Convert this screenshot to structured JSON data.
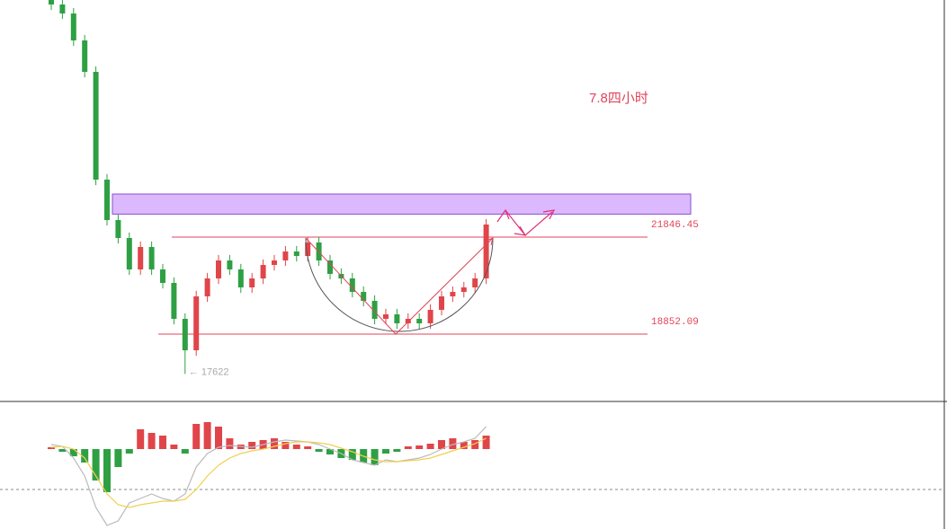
{
  "chart_data": {
    "type": "candlestick",
    "title": "7.8四小时",
    "open": [
      29166,
      29027,
      28750,
      27918,
      26948,
      23621,
      22373,
      21819,
      20849,
      21542,
      20849,
      20433,
      19324,
      18353,
      20017,
      20571,
      21126,
      20849,
      20294,
      20571,
      20987,
      21126,
      21403,
      21264,
      21680,
      21126,
      20710,
      20571,
      20155,
      19879,
      19324,
      19462,
      19185,
      19324,
      19185,
      19601,
      20017,
      20155,
      20294,
      20571
    ],
    "high": [
      29336,
      29197,
      28920,
      28088,
      27118,
      23791,
      22543,
      21989,
      21712,
      21712,
      21019,
      20603,
      19494,
      20187,
      20741,
      21296,
      21296,
      21019,
      20741,
      21157,
      21296,
      21573,
      21573,
      21850,
      21850,
      21296,
      20880,
      20741,
      20325,
      20049,
      19632,
      19632,
      19494,
      19494,
      19771,
      20187,
      20325,
      20464,
      20741,
      22405
    ],
    "low": [
      28857,
      28580,
      27748,
      26778,
      23451,
      22203,
      21649,
      20679,
      20679,
      20679,
      20263,
      19154,
      17622,
      18183,
      19847,
      20401,
      20679,
      20124,
      20124,
      20401,
      20817,
      20956,
      21094,
      21094,
      20956,
      20540,
      20401,
      19985,
      19709,
      19154,
      19154,
      19015,
      19015,
      19015,
      19015,
      19431,
      19847,
      19985,
      20124,
      20401
    ],
    "close": [
      29027,
      28750,
      27918,
      26948,
      23621,
      22373,
      21819,
      20849,
      21542,
      20849,
      20433,
      19324,
      18353,
      20017,
      20571,
      21126,
      20849,
      20294,
      20571,
      20987,
      21126,
      21403,
      21264,
      21680,
      21126,
      20710,
      20571,
      20155,
      19879,
      19324,
      19462,
      19185,
      19324,
      19185,
      19601,
      20017,
      20155,
      20294,
      20571,
      22235
    ],
    "ylim": [
      16773,
      29166
    ],
    "up_color": "#e0454a",
    "down_color": "#2ea043",
    "zone": [
      22556,
      23177
    ],
    "zone_color": "#dcb8ff",
    "levels": [
      21846.45,
      18852.09
    ],
    "level_color": "#e0455a",
    "low_marker": {
      "value": 17622,
      "label": "← 17622"
    },
    "macd": {
      "hist": [
        2,
        -3,
        -8,
        -15,
        -35,
        -48,
        -20,
        -5,
        22,
        18,
        15,
        5,
        -5,
        28,
        30,
        25,
        12,
        5,
        8,
        10,
        12,
        8,
        5,
        3,
        -3,
        -6,
        -10,
        -12,
        -15,
        -18,
        -5,
        -3,
        3,
        4,
        6,
        10,
        12,
        8,
        10,
        15
      ],
      "dif": [
        5,
        3,
        -10,
        -30,
        -65,
        -85,
        -80,
        -60,
        -55,
        -50,
        -55,
        -58,
        -50,
        -20,
        -5,
        2,
        4,
        3,
        2,
        5,
        8,
        10,
        9,
        8,
        5,
        0,
        -5,
        -12,
        -15,
        -18,
        -12,
        -14,
        -12,
        -10,
        -6,
        0,
        5,
        8,
        12,
        25
      ],
      "dea": [
        2,
        3,
        0,
        -10,
        -30,
        -50,
        -62,
        -65,
        -62,
        -60,
        -58,
        -58,
        -56,
        -45,
        -30,
        -18,
        -10,
        -5,
        -2,
        0,
        3,
        6,
        8,
        8,
        7,
        5,
        1,
        -3,
        -8,
        -12,
        -14,
        -14,
        -13,
        -12,
        -10,
        -6,
        -2,
        2,
        6,
        12
      ],
      "ylim": [
        -89,
        53
      ],
      "dif_color": "#bbbbbb",
      "dea_color": "#f0d050"
    }
  }
}
